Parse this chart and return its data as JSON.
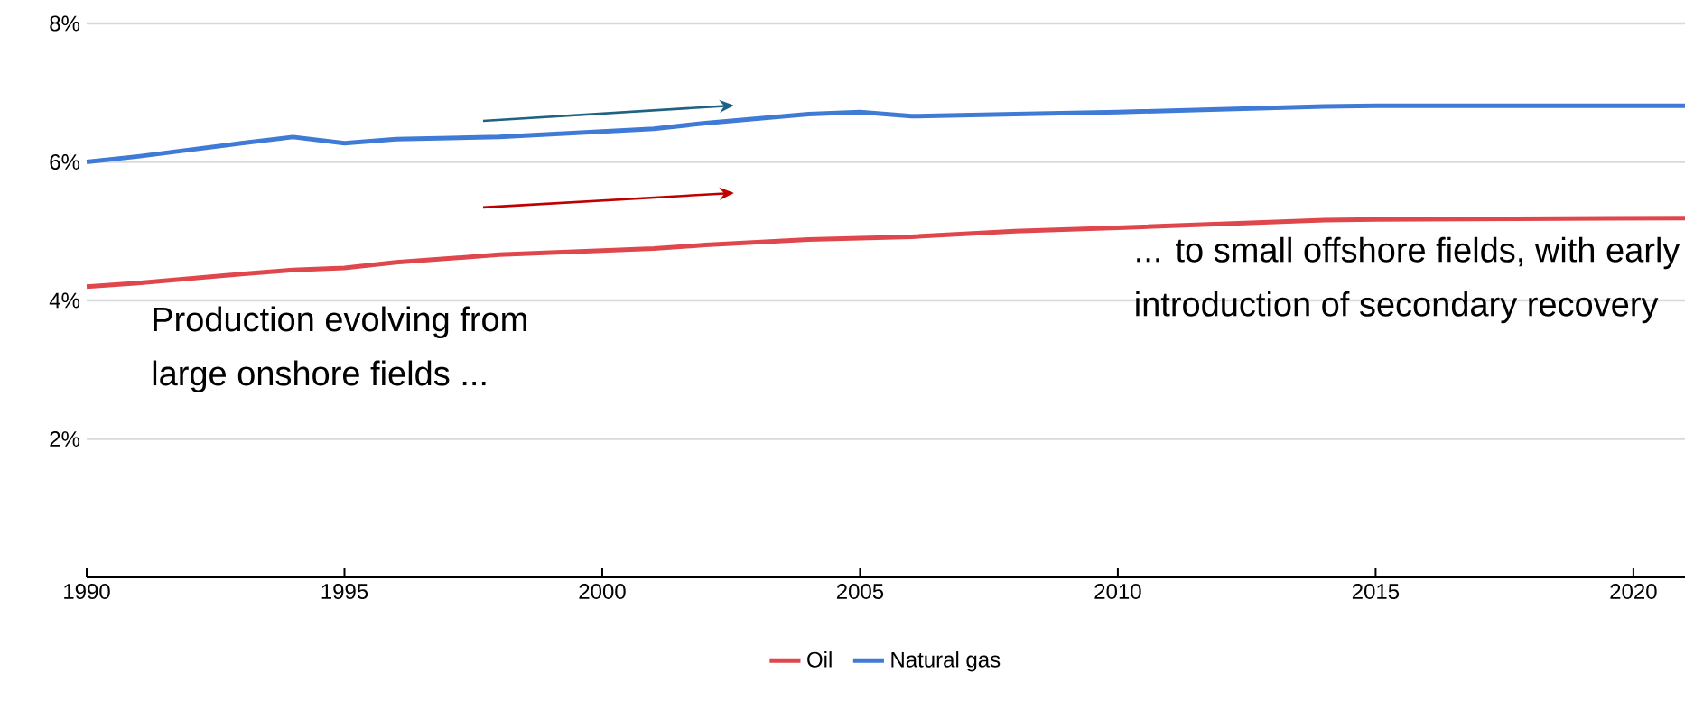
{
  "chart_data": {
    "type": "line",
    "x": [
      1990,
      1991,
      1993,
      1994,
      1995,
      1996,
      1998,
      2000,
      2001,
      2002,
      2004,
      2005,
      2006,
      2008,
      2010,
      2014,
      2015,
      2021
    ],
    "series": [
      {
        "name": "Oil",
        "color": "#e0474c",
        "values": [
          4.2,
          4.25,
          4.38,
          4.44,
          4.47,
          4.55,
          4.66,
          4.72,
          4.75,
          4.8,
          4.88,
          4.9,
          4.92,
          5.0,
          5.05,
          5.16,
          5.17,
          5.19
        ]
      },
      {
        "name": "Natural gas",
        "color": "#3f7bd6",
        "values": [
          6.0,
          6.08,
          6.27,
          6.36,
          6.27,
          6.33,
          6.36,
          6.44,
          6.48,
          6.56,
          6.69,
          6.72,
          6.66,
          6.69,
          6.72,
          6.8,
          6.81,
          6.81
        ]
      }
    ],
    "xlim": [
      1990,
      2021
    ],
    "ylim": [
      0,
      8
    ],
    "xticks": [
      1990,
      1995,
      2000,
      2005,
      2010,
      2015,
      2020
    ],
    "yticks": [
      {
        "value": 2,
        "label": "2%"
      },
      {
        "value": 4,
        "label": "4%"
      },
      {
        "value": 6,
        "label": "6%"
      },
      {
        "value": 8,
        "label": "8%"
      }
    ],
    "grid": "y",
    "legend": "bottom",
    "marker": "none",
    "line_style": "solid",
    "annotations": [
      "Production evolving from large onshore fields ...",
      "... to small offshore fields, with early introduction of secondary recovery"
    ]
  }
}
